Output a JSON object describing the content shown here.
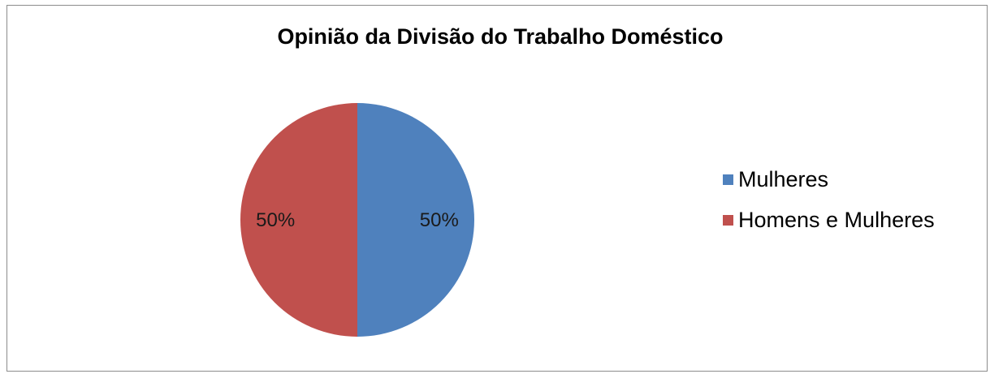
{
  "chart_data": {
    "type": "pie",
    "title": "Opinião da Divisão do Trabalho Doméstico",
    "categories": [
      "Mulheres",
      "Homens e Mulheres"
    ],
    "values": [
      50,
      50
    ],
    "labels": [
      "50%",
      "50%"
    ],
    "colors": [
      "#4f81bd",
      "#c0504d"
    ],
    "legend_position": "right"
  }
}
